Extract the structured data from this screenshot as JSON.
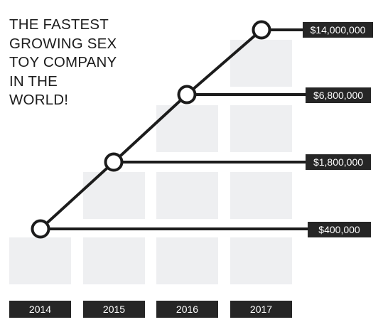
{
  "page": {
    "title": "THE FASTEST\nGROWING SEX\nTOY COMPANY\nIN THE\nWORLD!"
  },
  "colors": {
    "line": "#1c1c1c",
    "marker_fill": "#ffffff",
    "tile": "#eeeff1",
    "label_bg": "#262626",
    "label_text": "#ffffff"
  },
  "chart_data": {
    "type": "line",
    "title": "THE FASTEST GROWING SEX TOY COMPANY IN THE WORLD!",
    "categories": [
      "2014",
      "2015",
      "2016",
      "2017"
    ],
    "series": [
      {
        "values": [
          400000,
          1800000,
          6800000,
          14000000
        ]
      }
    ],
    "value_labels": [
      "$400,000",
      "$1,800,000",
      "$6,800,000",
      "$14,000,000"
    ],
    "xlabel": "",
    "ylabel": "",
    "scale": "non-linear stepped (one step per year)",
    "grid": false,
    "legend": "none"
  }
}
